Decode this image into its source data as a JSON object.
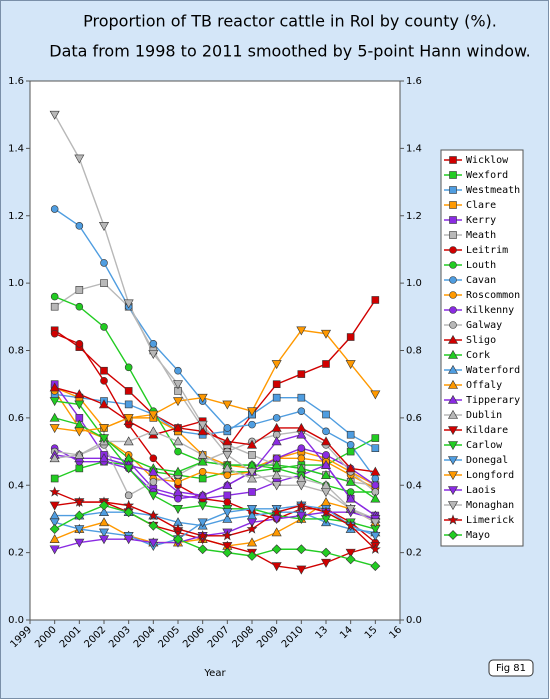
{
  "chart_data": {
    "type": "line",
    "title": "Proportion of TB reactor cattle in RoI by county (%).",
    "subtitle": "Data from 1998 to 2011 smoothed by 5-point Hann window.",
    "x_label": "Year",
    "figure_label": "Fig 81",
    "categories": [
      "1999",
      "2000",
      "2001",
      "2002",
      "2003",
      "2004",
      "2005",
      "2006",
      "2007",
      "2008",
      "2009",
      "2010",
      "13",
      "14",
      "15",
      "16"
    ],
    "ylim": [
      0,
      1.6
    ],
    "yticks": [
      {
        "value": 0,
        "label": "0.0"
      },
      0.2,
      0.4,
      0.6,
      0.8,
      {
        "value": 1,
        "label": "1.0"
      },
      1.2,
      1.4,
      1.6
    ],
    "y2lim": [
      0,
      1.6
    ],
    "y2ticks": [
      {
        "value": 0,
        "label": "0.0"
      },
      0.2,
      0.4,
      0.6,
      0.8,
      {
        "value": 1,
        "label": "1.0"
      },
      1.2,
      1.4,
      1.6
    ],
    "legend": "right",
    "series": [
      {
        "name": "Wicklow",
        "color": "#d00000",
        "marker": "square",
        "values": [
          null,
          0.86,
          0.81,
          0.74,
          0.68,
          0.61,
          0.57,
          0.59,
          0.51,
          0.61,
          0.7,
          0.73,
          0.76,
          0.84,
          0.95,
          null
        ]
      },
      {
        "name": "Wexford",
        "color": "#22cc22",
        "marker": "square",
        "values": [
          null,
          0.42,
          0.45,
          0.47,
          0.46,
          0.44,
          0.43,
          0.42,
          0.44,
          0.44,
          0.45,
          0.46,
          0.46,
          0.5,
          0.54,
          null
        ]
      },
      {
        "name": "Westmeath",
        "color": "#4f9de0",
        "marker": "square",
        "values": [
          null,
          0.67,
          0.66,
          0.65,
          0.64,
          0.61,
          0.56,
          0.55,
          0.56,
          0.61,
          0.66,
          0.66,
          0.61,
          0.55,
          0.51,
          null
        ]
      },
      {
        "name": "Clare",
        "color": "#ff9900",
        "marker": "square",
        "values": [
          null,
          0.69,
          0.66,
          0.57,
          0.6,
          0.6,
          0.56,
          0.49,
          0.46,
          0.45,
          0.48,
          0.5,
          0.48,
          0.44,
          0.4,
          null
        ]
      },
      {
        "name": "Kerry",
        "color": "#8a2be2",
        "marker": "square",
        "values": [
          null,
          0.7,
          0.6,
          0.49,
          0.47,
          0.39,
          0.37,
          0.36,
          0.37,
          0.38,
          0.41,
          0.43,
          0.46,
          0.36,
          0.31,
          null
        ]
      },
      {
        "name": "Meath",
        "color": "#b8b8b8",
        "marker": "square",
        "values": [
          null,
          0.93,
          0.98,
          1.0,
          0.93,
          0.8,
          0.68,
          0.57,
          0.52,
          0.49,
          0.46,
          0.45,
          0.43,
          0.41,
          0.4,
          null
        ]
      },
      {
        "name": "Leitrim",
        "color": "#d00000",
        "marker": "circle",
        "values": [
          null,
          0.85,
          0.82,
          0.71,
          0.58,
          0.48,
          0.4,
          0.36,
          0.35,
          0.32,
          0.3,
          0.33,
          0.33,
          0.29,
          0.23,
          null
        ]
      },
      {
        "name": "Louth",
        "color": "#22cc22",
        "marker": "circle",
        "values": [
          null,
          0.96,
          0.93,
          0.87,
          0.75,
          0.62,
          0.5,
          0.47,
          0.46,
          0.46,
          0.45,
          0.43,
          0.4,
          0.38,
          0.38,
          null
        ]
      },
      {
        "name": "Cavan",
        "color": "#4f9de0",
        "marker": "circle",
        "values": [
          null,
          1.22,
          1.17,
          1.06,
          0.93,
          0.82,
          0.74,
          0.65,
          0.57,
          0.58,
          0.6,
          0.62,
          0.56,
          0.52,
          0.42,
          null
        ]
      },
      {
        "name": "Roscommon",
        "color": "#ff9900",
        "marker": "circle",
        "values": [
          null,
          0.68,
          0.57,
          0.54,
          0.49,
          0.42,
          0.41,
          0.44,
          0.43,
          0.44,
          0.48,
          0.48,
          0.47,
          0.43,
          0.39,
          null
        ]
      },
      {
        "name": "Kilkenny",
        "color": "#8a2be2",
        "marker": "circle",
        "values": [
          null,
          0.51,
          0.47,
          0.47,
          0.45,
          0.38,
          0.36,
          0.37,
          0.4,
          0.44,
          0.48,
          0.51,
          0.49,
          0.45,
          0.4,
          null
        ]
      },
      {
        "name": "Galway",
        "color": "#b8b8b8",
        "marker": "circle",
        "values": [
          null,
          0.5,
          0.49,
          0.52,
          0.37,
          0.41,
          0.43,
          0.47,
          0.5,
          0.53,
          0.55,
          0.56,
          0.52,
          0.44,
          0.38,
          null
        ]
      },
      {
        "name": "Sligo",
        "color": "#d00000",
        "marker": "triangle",
        "values": [
          null,
          0.69,
          0.67,
          0.64,
          0.59,
          0.55,
          0.57,
          0.56,
          0.53,
          0.52,
          0.57,
          0.57,
          0.53,
          0.45,
          0.44,
          null
        ]
      },
      {
        "name": "Cork",
        "color": "#22cc22",
        "marker": "triangle",
        "values": [
          null,
          0.6,
          0.58,
          0.54,
          0.48,
          0.45,
          0.44,
          0.47,
          0.46,
          0.46,
          0.46,
          0.45,
          0.43,
          0.41,
          0.36,
          null
        ]
      },
      {
        "name": "Waterford",
        "color": "#4f9de0",
        "marker": "triangle",
        "values": [
          null,
          0.31,
          0.31,
          0.32,
          0.32,
          0.31,
          0.29,
          0.28,
          0.3,
          0.31,
          0.32,
          0.32,
          0.29,
          0.27,
          0.26,
          null
        ]
      },
      {
        "name": "Offaly",
        "color": "#ff9900",
        "marker": "triangle",
        "values": [
          null,
          0.24,
          0.27,
          0.29,
          0.25,
          0.23,
          0.23,
          0.24,
          0.22,
          0.23,
          0.26,
          0.3,
          0.35,
          0.33,
          0.29,
          null
        ]
      },
      {
        "name": "Tipperary",
        "color": "#8a2be2",
        "marker": "triangle",
        "values": [
          null,
          0.49,
          0.48,
          0.48,
          0.46,
          0.44,
          0.38,
          0.37,
          0.4,
          0.44,
          0.53,
          0.55,
          0.46,
          0.36,
          0.31,
          null
        ]
      },
      {
        "name": "Dublin",
        "color": "#b8b8b8",
        "marker": "triangle",
        "values": [
          null,
          0.48,
          0.49,
          0.53,
          0.53,
          0.56,
          0.53,
          0.49,
          0.45,
          0.42,
          0.43,
          0.42,
          0.4,
          0.33,
          0.3,
          null
        ]
      },
      {
        "name": "Kildare",
        "color": "#d00000",
        "marker": "invtriangle",
        "values": [
          null,
          0.34,
          0.35,
          0.35,
          0.32,
          0.28,
          0.26,
          0.24,
          0.22,
          0.2,
          0.16,
          0.15,
          0.17,
          0.2,
          0.22,
          null
        ]
      },
      {
        "name": "Carlow",
        "color": "#22cc22",
        "marker": "invtriangle",
        "values": [
          null,
          0.65,
          0.64,
          0.54,
          0.45,
          0.37,
          0.33,
          0.34,
          0.33,
          0.33,
          0.31,
          0.3,
          0.3,
          0.29,
          0.27,
          null
        ]
      },
      {
        "name": "Donegal",
        "color": "#4f9de0",
        "marker": "invtriangle",
        "values": [
          null,
          0.29,
          0.27,
          0.26,
          0.25,
          0.22,
          0.24,
          0.29,
          0.32,
          0.33,
          0.33,
          0.34,
          0.33,
          0.28,
          0.25,
          null
        ]
      },
      {
        "name": "Longford",
        "color": "#ff9900",
        "marker": "invtriangle",
        "values": [
          null,
          0.57,
          0.56,
          0.57,
          0.6,
          0.61,
          0.65,
          0.66,
          0.64,
          0.62,
          0.76,
          0.86,
          0.85,
          0.76,
          0.67,
          null
        ]
      },
      {
        "name": "Laois",
        "color": "#8a2be2",
        "marker": "invtriangle",
        "values": [
          null,
          0.21,
          0.23,
          0.24,
          0.24,
          0.23,
          0.23,
          0.25,
          0.26,
          0.29,
          0.3,
          0.31,
          0.32,
          0.32,
          0.3,
          null
        ]
      },
      {
        "name": "Monaghan",
        "color": "#b8b8b8",
        "marker": "invtriangle",
        "values": [
          null,
          1.5,
          1.37,
          1.17,
          0.94,
          0.79,
          0.7,
          0.58,
          0.49,
          0.44,
          0.4,
          0.4,
          0.38,
          0.33,
          0.29,
          null
        ]
      },
      {
        "name": "Limerick",
        "color": "#d00000",
        "marker": "star",
        "values": [
          null,
          0.38,
          0.35,
          0.35,
          0.34,
          0.31,
          0.27,
          0.25,
          0.25,
          0.27,
          0.32,
          0.34,
          0.32,
          0.28,
          0.21,
          null
        ]
      },
      {
        "name": "Mayo",
        "color": "#22cc22",
        "marker": "diamond",
        "values": [
          null,
          0.27,
          0.31,
          0.34,
          0.32,
          0.28,
          0.24,
          0.21,
          0.2,
          0.19,
          0.21,
          0.21,
          0.2,
          0.18,
          0.16,
          null
        ]
      }
    ]
  }
}
